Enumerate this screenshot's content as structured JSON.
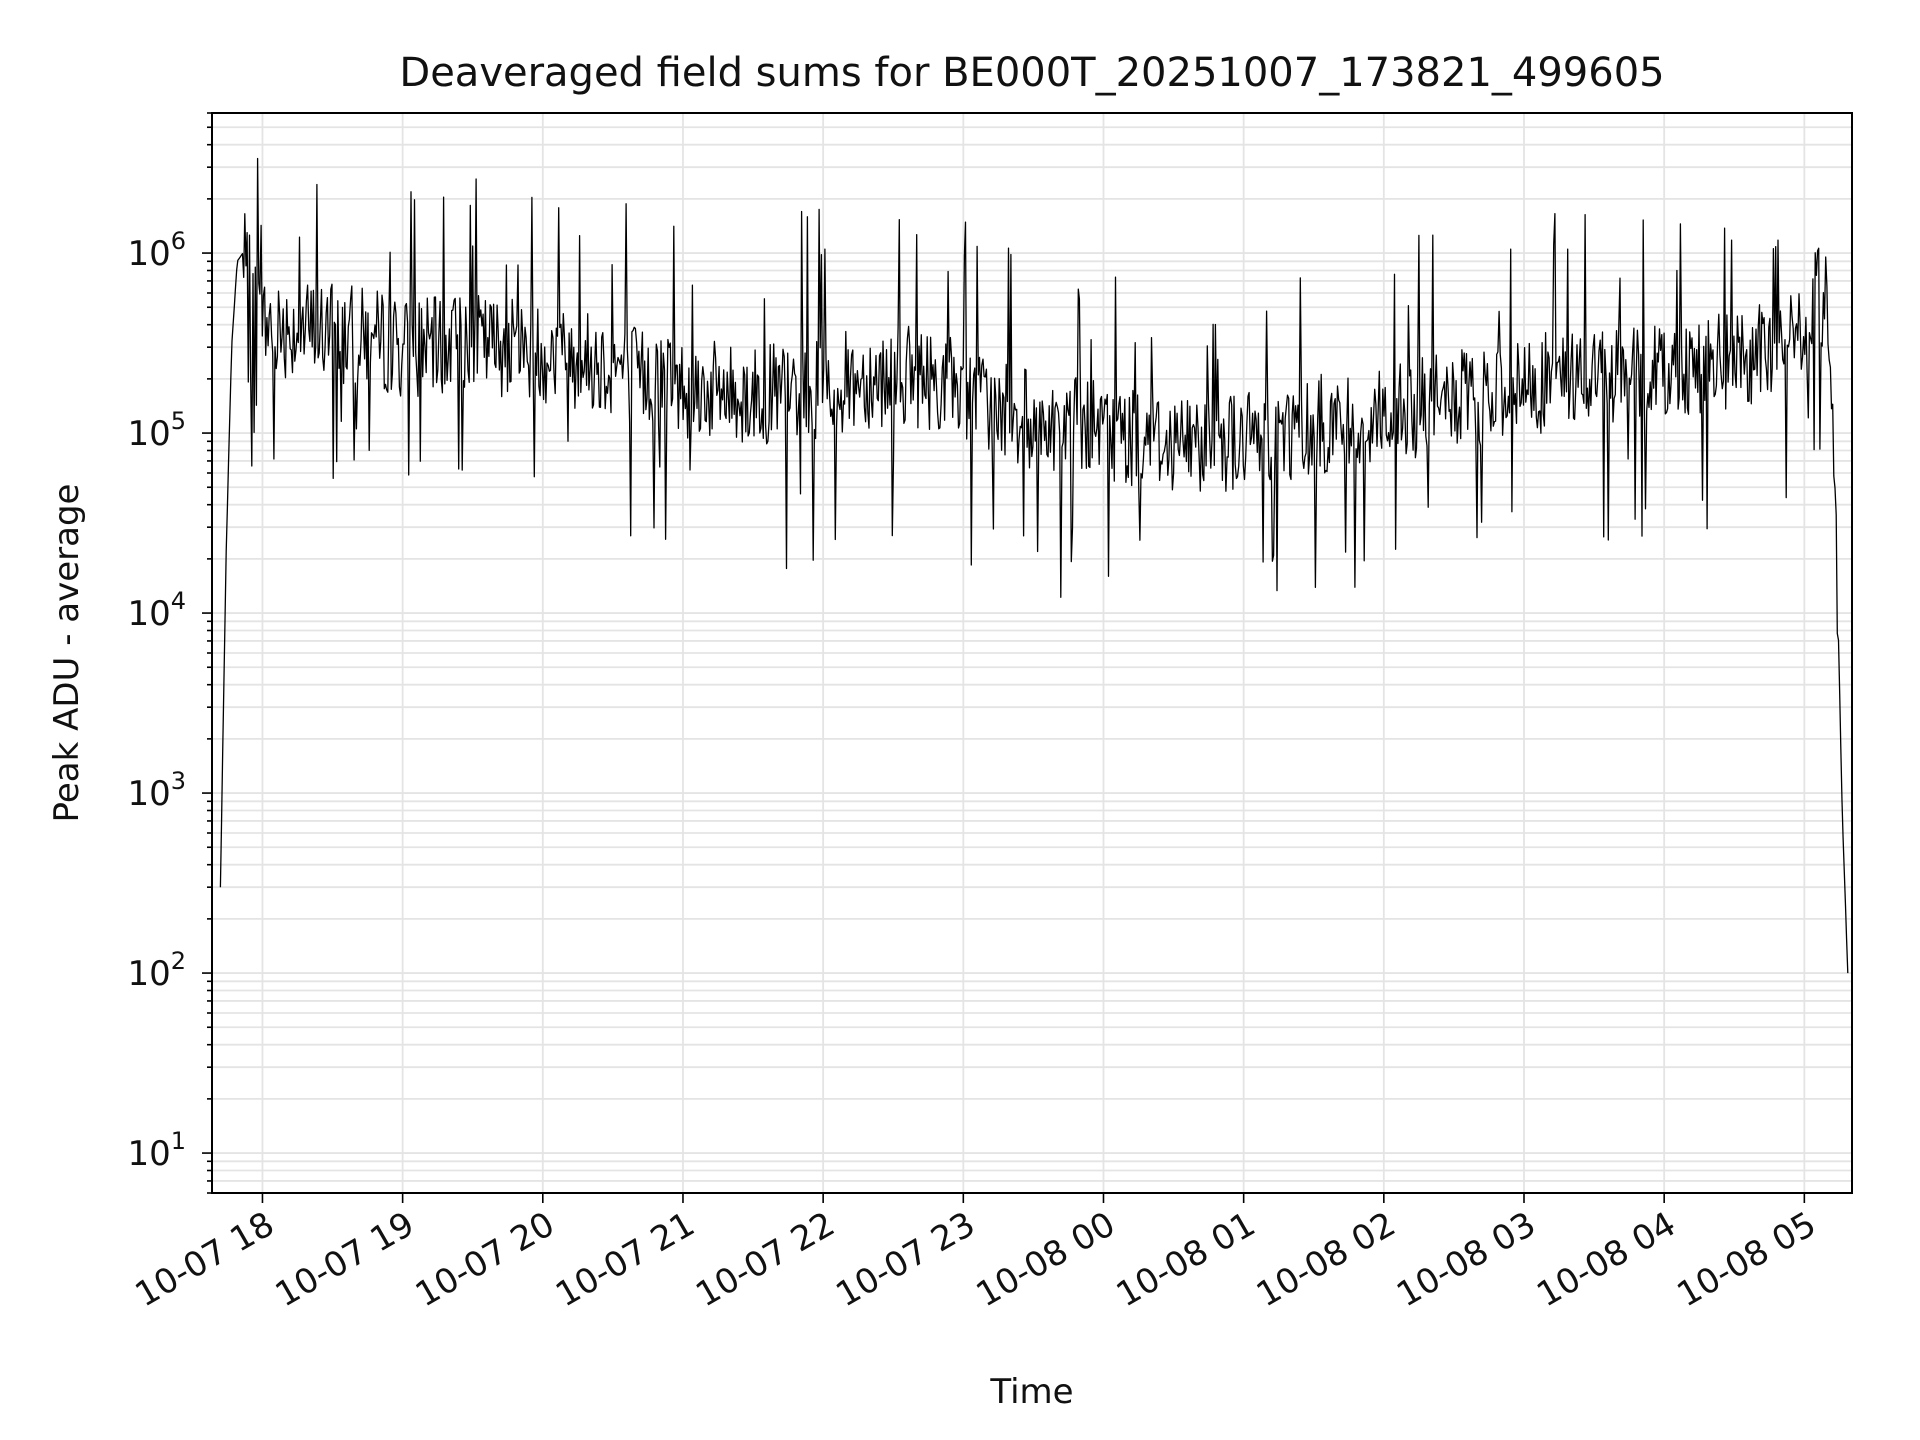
{
  "chart_data": {
    "type": "line",
    "title": "Deaveraged field sums for BE000T_20251007_173821_499605",
    "xlabel": "Time",
    "ylabel": "Peak ADU - average",
    "yscale": "log",
    "ylim": [
      6,
      6000000
    ],
    "xlim_hours": [
      17.64,
      29.34
    ],
    "grid": true,
    "y_ticks": [
      {
        "value": 10,
        "base": "10",
        "exp": "1"
      },
      {
        "value": 100,
        "base": "10",
        "exp": "2"
      },
      {
        "value": 1000,
        "base": "10",
        "exp": "3"
      },
      {
        "value": 10000,
        "base": "10",
        "exp": "4"
      },
      {
        "value": 100000,
        "base": "10",
        "exp": "5"
      },
      {
        "value": 1000000,
        "base": "10",
        "exp": "6"
      }
    ],
    "x_ticks": [
      {
        "hour": 18,
        "label": "10-07 18"
      },
      {
        "hour": 19,
        "label": "10-07 19"
      },
      {
        "hour": 20,
        "label": "10-07 20"
      },
      {
        "hour": 21,
        "label": "10-07 21"
      },
      {
        "hour": 22,
        "label": "10-07 22"
      },
      {
        "hour": 23,
        "label": "10-07 23"
      },
      {
        "hour": 24,
        "label": "10-08 00"
      },
      {
        "hour": 25,
        "label": "10-08 01"
      },
      {
        "hour": 26,
        "label": "10-08 02"
      },
      {
        "hour": 27,
        "label": "10-08 03"
      },
      {
        "hour": 28,
        "label": "10-08 04"
      },
      {
        "hour": 29,
        "label": "10-08 05"
      }
    ],
    "series": [
      {
        "name": "Deaveraged field sums",
        "color": "#000000",
        "x_hours": [
          17.7,
          17.74,
          17.78,
          17.82,
          17.86,
          17.9,
          17.95,
          18.0,
          18.25,
          18.5,
          18.75,
          19.0,
          19.25,
          19.5,
          19.75,
          20.0,
          20.25,
          20.5,
          20.75,
          21.0,
          21.25,
          21.5,
          21.75,
          22.0,
          22.25,
          22.5,
          22.75,
          23.0,
          23.25,
          23.5,
          23.75,
          24.0,
          24.25,
          24.5,
          24.75,
          25.0,
          25.25,
          25.5,
          25.75,
          26.0,
          26.25,
          26.5,
          26.75,
          27.0,
          27.25,
          27.5,
          27.75,
          28.0,
          28.25,
          28.5,
          28.75,
          29.0,
          29.1,
          29.17,
          29.22,
          29.27,
          29.31
        ],
        "y_base": [
          300,
          20000,
          300000,
          900000,
          1000000,
          700000,
          500000,
          400000,
          380000,
          360000,
          340000,
          300000,
          300000,
          320000,
          300000,
          280000,
          260000,
          240000,
          200000,
          180000,
          170000,
          160000,
          170000,
          180000,
          200000,
          210000,
          200000,
          180000,
          130000,
          120000,
          110000,
          100000,
          95000,
          90000,
          90000,
          90000,
          100000,
          110000,
          120000,
          130000,
          140000,
          150000,
          160000,
          180000,
          200000,
          210000,
          220000,
          230000,
          240000,
          250000,
          280000,
          350000,
          600000,
          500000,
          50000,
          800,
          100
        ],
        "noise_dex": 0.28,
        "samples": 1400,
        "seed": 7
      }
    ]
  }
}
